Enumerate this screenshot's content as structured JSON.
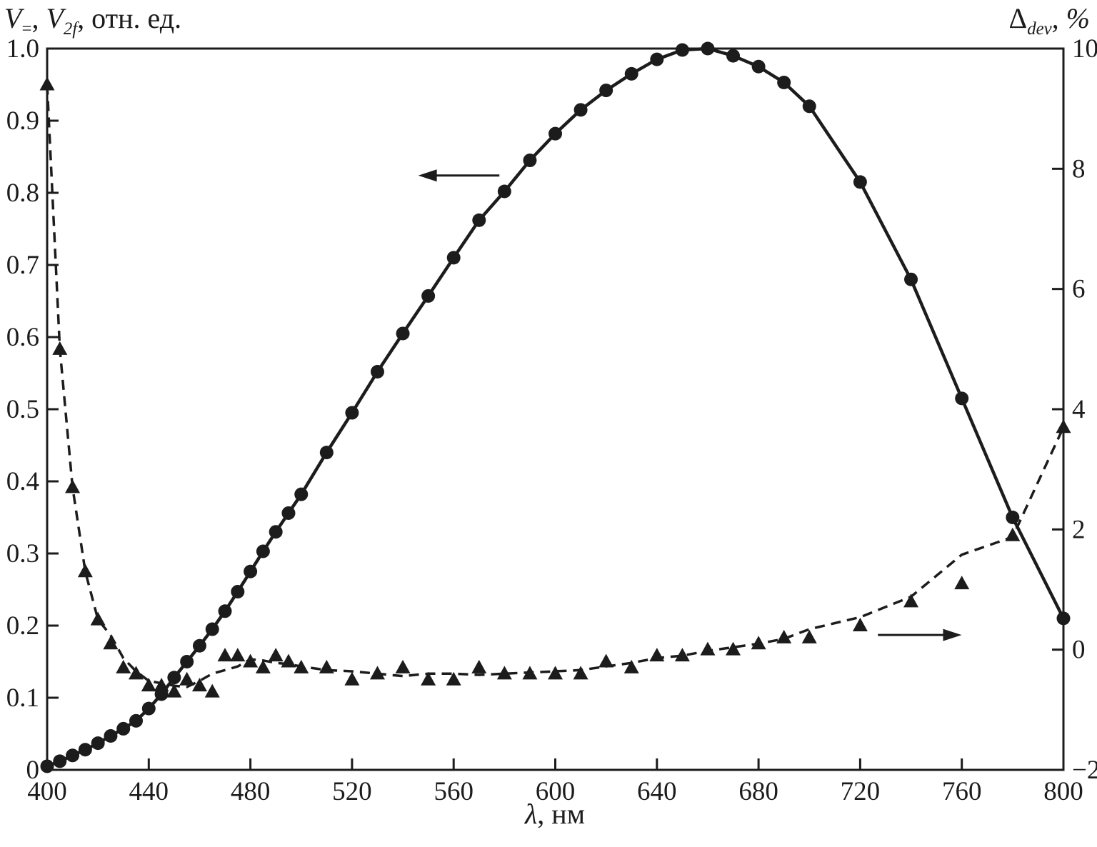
{
  "page": {
    "background": "#ffffff",
    "ink": "#1c1c1c"
  },
  "titles": {
    "left": {
      "sym1": "V",
      "sub1": "=",
      "sep": ", ",
      "sym2": "V",
      "sub2": "2f",
      "rest": ", отн. ед."
    },
    "right": {
      "sym": "Δ",
      "sub": "dev",
      "rest": ", %"
    },
    "x": {
      "sym": "λ",
      "rest": ", нм"
    }
  },
  "chart_data": {
    "type": "line",
    "ink": "#1c1c1c",
    "title": "",
    "xlabel": "λ, нм",
    "x_range": [
      400,
      800
    ],
    "x_ticks": [
      400,
      440,
      480,
      520,
      560,
      600,
      640,
      680,
      720,
      760,
      800
    ],
    "x_tick_labels": [
      "400",
      "440",
      "480",
      "520",
      "560",
      "600",
      "640",
      "680",
      "720",
      "760",
      "800"
    ],
    "left_axis": {
      "label": "V=, V2f, отн. ед.",
      "range": [
        0,
        1
      ],
      "ticks": [
        0,
        0.1,
        0.2,
        0.3,
        0.4,
        0.5,
        0.6,
        0.7,
        0.8,
        0.9,
        1.0
      ],
      "tick_labels": [
        "0",
        "0.1",
        "0.2",
        "0.3",
        "0.4",
        "0.5",
        "0.6",
        "0.7",
        "0.8",
        "0.9",
        "1.0"
      ]
    },
    "right_axis": {
      "label": "Δdev, %",
      "range": [
        -2,
        10
      ],
      "ticks": [
        -2,
        0,
        2,
        4,
        6,
        8,
        10
      ],
      "tick_labels": [
        "−2",
        "0",
        "2",
        "4",
        "6",
        "8",
        "10"
      ]
    },
    "grid": false,
    "legend": "none",
    "series": [
      {
        "id": "v-response",
        "name": "V=, V2f (photodetector signal, rel. units)",
        "axis": "left",
        "marker": "circle",
        "line": "solid",
        "x": [
          400,
          405,
          410,
          415,
          420,
          425,
          430,
          435,
          440,
          445,
          450,
          455,
          460,
          465,
          470,
          475,
          480,
          485,
          490,
          495,
          500,
          510,
          520,
          530,
          540,
          550,
          560,
          570,
          580,
          590,
          600,
          610,
          620,
          630,
          640,
          650,
          660,
          670,
          680,
          690,
          700,
          720,
          740,
          760,
          780,
          800
        ],
        "values": [
          0.005,
          0.012,
          0.02,
          0.028,
          0.037,
          0.047,
          0.057,
          0.068,
          0.085,
          0.105,
          0.128,
          0.15,
          0.172,
          0.195,
          0.22,
          0.247,
          0.275,
          0.303,
          0.33,
          0.356,
          0.382,
          0.44,
          0.495,
          0.552,
          0.605,
          0.657,
          0.71,
          0.762,
          0.802,
          0.845,
          0.882,
          0.915,
          0.942,
          0.965,
          0.985,
          0.998,
          1.0,
          0.99,
          0.975,
          0.953,
          0.92,
          0.815,
          0.68,
          0.515,
          0.35,
          0.21
        ]
      },
      {
        "id": "delta-dev",
        "name": "Δdev (deviation, %)",
        "axis": "right",
        "marker": "triangle",
        "line": "dashed",
        "x": [
          400,
          405,
          410,
          415,
          420,
          425,
          430,
          435,
          440,
          445,
          450,
          455,
          460,
          465,
          470,
          475,
          480,
          485,
          490,
          495,
          500,
          510,
          520,
          530,
          540,
          550,
          560,
          570,
          580,
          590,
          600,
          610,
          620,
          630,
          640,
          650,
          660,
          670,
          680,
          690,
          700,
          720,
          740,
          760,
          780,
          800
        ],
        "values": [
          9.4,
          5.0,
          2.7,
          1.3,
          0.5,
          0.1,
          -0.3,
          -0.4,
          -0.6,
          -0.6,
          -0.7,
          -0.5,
          -0.6,
          -0.7,
          -0.1,
          -0.1,
          -0.2,
          -0.3,
          -0.1,
          -0.2,
          -0.3,
          -0.3,
          -0.5,
          -0.4,
          -0.3,
          -0.5,
          -0.5,
          -0.3,
          -0.4,
          -0.4,
          -0.4,
          -0.4,
          -0.2,
          -0.3,
          -0.1,
          -0.1,
          0.0,
          0.0,
          0.1,
          0.2,
          0.2,
          0.4,
          0.8,
          1.1,
          1.9,
          3.7
        ]
      }
    ],
    "annotations": {
      "arrows": [
        {
          "name": "left-axis-arrow",
          "points_to": "left-axis",
          "from_nm": 578,
          "to_nm": 550,
          "y_left": 0.824
        },
        {
          "name": "right-axis-arrow",
          "points_to": "right-axis",
          "from_nm": 727,
          "to_nm": 756,
          "y_left": 0.187
        }
      ]
    }
  }
}
